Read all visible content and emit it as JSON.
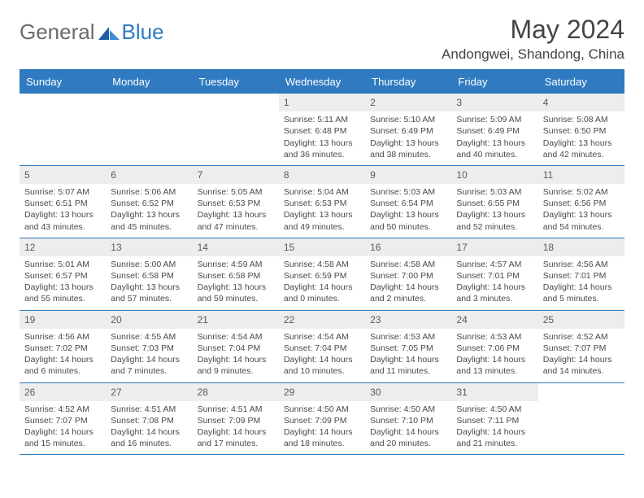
{
  "brand": {
    "word1": "General",
    "word2": "Blue"
  },
  "title": "May 2024",
  "location": "Andongwei, Shandong, China",
  "colors": {
    "accent": "#2f7ac0",
    "dow_bg": "#2f7ac0",
    "daynum_bg": "#ededed",
    "text": "#4a4a4a",
    "title_text": "#444444"
  },
  "days_of_week": [
    "Sunday",
    "Monday",
    "Tuesday",
    "Wednesday",
    "Thursday",
    "Friday",
    "Saturday"
  ],
  "weeks": [
    [
      {
        "empty": true
      },
      {
        "empty": true
      },
      {
        "empty": true
      },
      {
        "n": "1",
        "sunrise": "5:11 AM",
        "sunset": "6:48 PM",
        "dl_h": 13,
        "dl_m": 36
      },
      {
        "n": "2",
        "sunrise": "5:10 AM",
        "sunset": "6:49 PM",
        "dl_h": 13,
        "dl_m": 38
      },
      {
        "n": "3",
        "sunrise": "5:09 AM",
        "sunset": "6:49 PM",
        "dl_h": 13,
        "dl_m": 40
      },
      {
        "n": "4",
        "sunrise": "5:08 AM",
        "sunset": "6:50 PM",
        "dl_h": 13,
        "dl_m": 42
      }
    ],
    [
      {
        "n": "5",
        "sunrise": "5:07 AM",
        "sunset": "6:51 PM",
        "dl_h": 13,
        "dl_m": 43
      },
      {
        "n": "6",
        "sunrise": "5:06 AM",
        "sunset": "6:52 PM",
        "dl_h": 13,
        "dl_m": 45
      },
      {
        "n": "7",
        "sunrise": "5:05 AM",
        "sunset": "6:53 PM",
        "dl_h": 13,
        "dl_m": 47
      },
      {
        "n": "8",
        "sunrise": "5:04 AM",
        "sunset": "6:53 PM",
        "dl_h": 13,
        "dl_m": 49
      },
      {
        "n": "9",
        "sunrise": "5:03 AM",
        "sunset": "6:54 PM",
        "dl_h": 13,
        "dl_m": 50
      },
      {
        "n": "10",
        "sunrise": "5:03 AM",
        "sunset": "6:55 PM",
        "dl_h": 13,
        "dl_m": 52
      },
      {
        "n": "11",
        "sunrise": "5:02 AM",
        "sunset": "6:56 PM",
        "dl_h": 13,
        "dl_m": 54
      }
    ],
    [
      {
        "n": "12",
        "sunrise": "5:01 AM",
        "sunset": "6:57 PM",
        "dl_h": 13,
        "dl_m": 55
      },
      {
        "n": "13",
        "sunrise": "5:00 AM",
        "sunset": "6:58 PM",
        "dl_h": 13,
        "dl_m": 57
      },
      {
        "n": "14",
        "sunrise": "4:59 AM",
        "sunset": "6:58 PM",
        "dl_h": 13,
        "dl_m": 59
      },
      {
        "n": "15",
        "sunrise": "4:58 AM",
        "sunset": "6:59 PM",
        "dl_h": 14,
        "dl_m": 0
      },
      {
        "n": "16",
        "sunrise": "4:58 AM",
        "sunset": "7:00 PM",
        "dl_h": 14,
        "dl_m": 2
      },
      {
        "n": "17",
        "sunrise": "4:57 AM",
        "sunset": "7:01 PM",
        "dl_h": 14,
        "dl_m": 3
      },
      {
        "n": "18",
        "sunrise": "4:56 AM",
        "sunset": "7:01 PM",
        "dl_h": 14,
        "dl_m": 5
      }
    ],
    [
      {
        "n": "19",
        "sunrise": "4:56 AM",
        "sunset": "7:02 PM",
        "dl_h": 14,
        "dl_m": 6
      },
      {
        "n": "20",
        "sunrise": "4:55 AM",
        "sunset": "7:03 PM",
        "dl_h": 14,
        "dl_m": 7
      },
      {
        "n": "21",
        "sunrise": "4:54 AM",
        "sunset": "7:04 PM",
        "dl_h": 14,
        "dl_m": 9
      },
      {
        "n": "22",
        "sunrise": "4:54 AM",
        "sunset": "7:04 PM",
        "dl_h": 14,
        "dl_m": 10
      },
      {
        "n": "23",
        "sunrise": "4:53 AM",
        "sunset": "7:05 PM",
        "dl_h": 14,
        "dl_m": 11
      },
      {
        "n": "24",
        "sunrise": "4:53 AM",
        "sunset": "7:06 PM",
        "dl_h": 14,
        "dl_m": 13
      },
      {
        "n": "25",
        "sunrise": "4:52 AM",
        "sunset": "7:07 PM",
        "dl_h": 14,
        "dl_m": 14
      }
    ],
    [
      {
        "n": "26",
        "sunrise": "4:52 AM",
        "sunset": "7:07 PM",
        "dl_h": 14,
        "dl_m": 15
      },
      {
        "n": "27",
        "sunrise": "4:51 AM",
        "sunset": "7:08 PM",
        "dl_h": 14,
        "dl_m": 16
      },
      {
        "n": "28",
        "sunrise": "4:51 AM",
        "sunset": "7:09 PM",
        "dl_h": 14,
        "dl_m": 17
      },
      {
        "n": "29",
        "sunrise": "4:50 AM",
        "sunset": "7:09 PM",
        "dl_h": 14,
        "dl_m": 18
      },
      {
        "n": "30",
        "sunrise": "4:50 AM",
        "sunset": "7:10 PM",
        "dl_h": 14,
        "dl_m": 20
      },
      {
        "n": "31",
        "sunrise": "4:50 AM",
        "sunset": "7:11 PM",
        "dl_h": 14,
        "dl_m": 21
      },
      {
        "empty": true
      }
    ]
  ]
}
